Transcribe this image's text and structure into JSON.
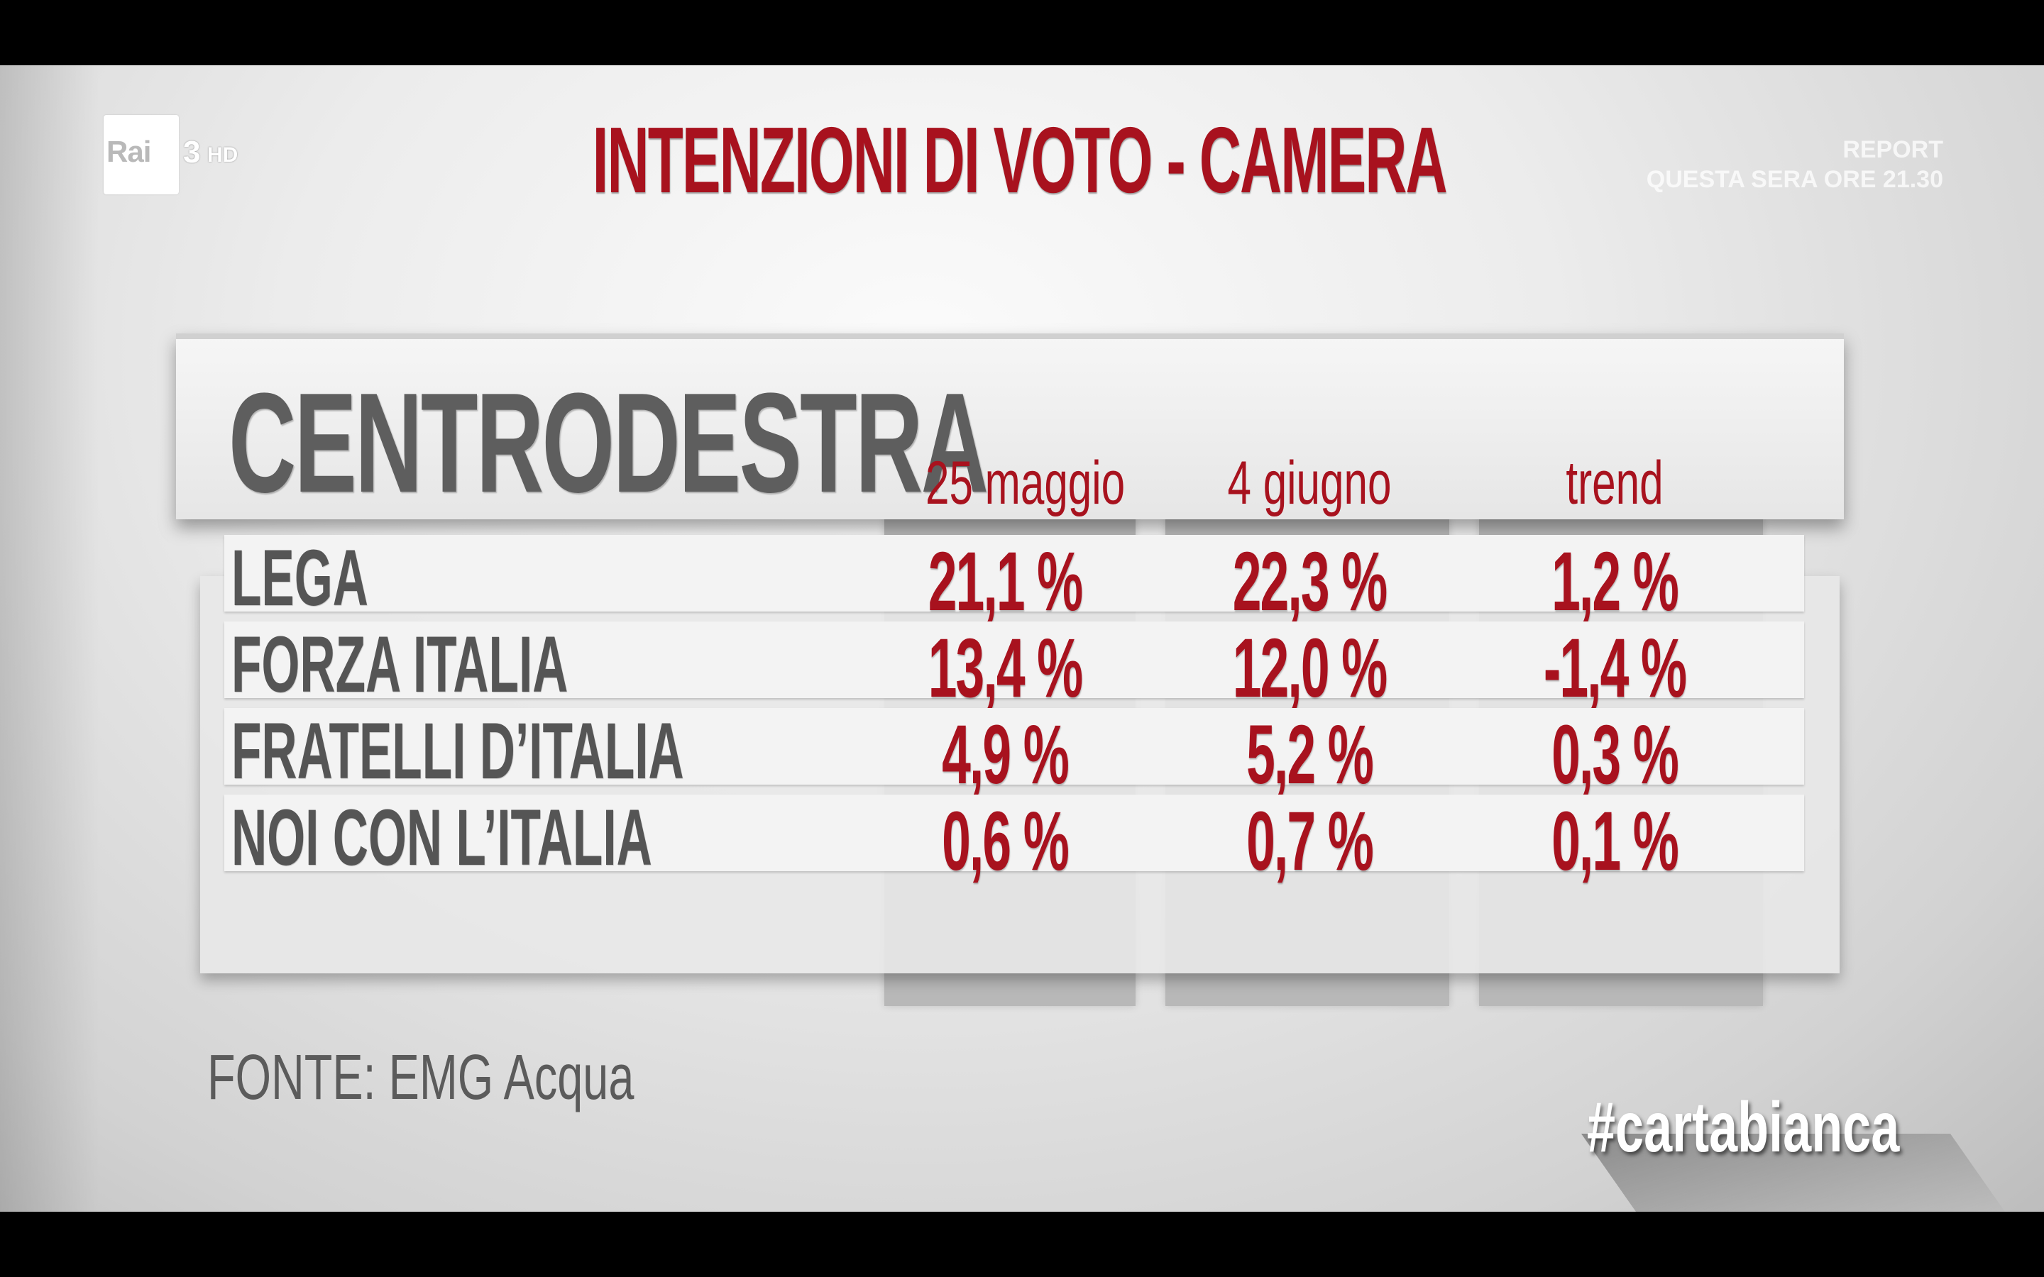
{
  "channel": {
    "logo_text": "Rai",
    "logo_number": "3",
    "logo_hd": "HD"
  },
  "promo": {
    "line1": "REPORT",
    "line2": "QUESTA SERA ORE 21.30"
  },
  "title": "INTENZIONI DI VOTO - CAMERA",
  "table": {
    "section": "CENTRODESTRA",
    "columns": [
      "25 maggio",
      "4 giugno",
      "trend"
    ],
    "rows": [
      {
        "party": "LEGA",
        "may25": "21,1 %",
        "jun4": "22,3 %",
        "trend": "1,2 %"
      },
      {
        "party": "FORZA ITALIA",
        "may25": "13,4 %",
        "jun4": "12,0 %",
        "trend": "-1,4 %"
      },
      {
        "party": "FRATELLI D’ITALIA",
        "may25": "4,9 %",
        "jun4": "5,2 %",
        "trend": "0,3 %"
      },
      {
        "party": "NOI CON L’ITALIA",
        "may25": "0,6 %",
        "jun4": "0,7 %",
        "trend": "0,1 %"
      }
    ]
  },
  "source": "FONTE: EMG Acqua",
  "hashtag": "#cartabianca",
  "colors": {
    "accent": "#a8121e",
    "label": "#5e5e5e"
  }
}
